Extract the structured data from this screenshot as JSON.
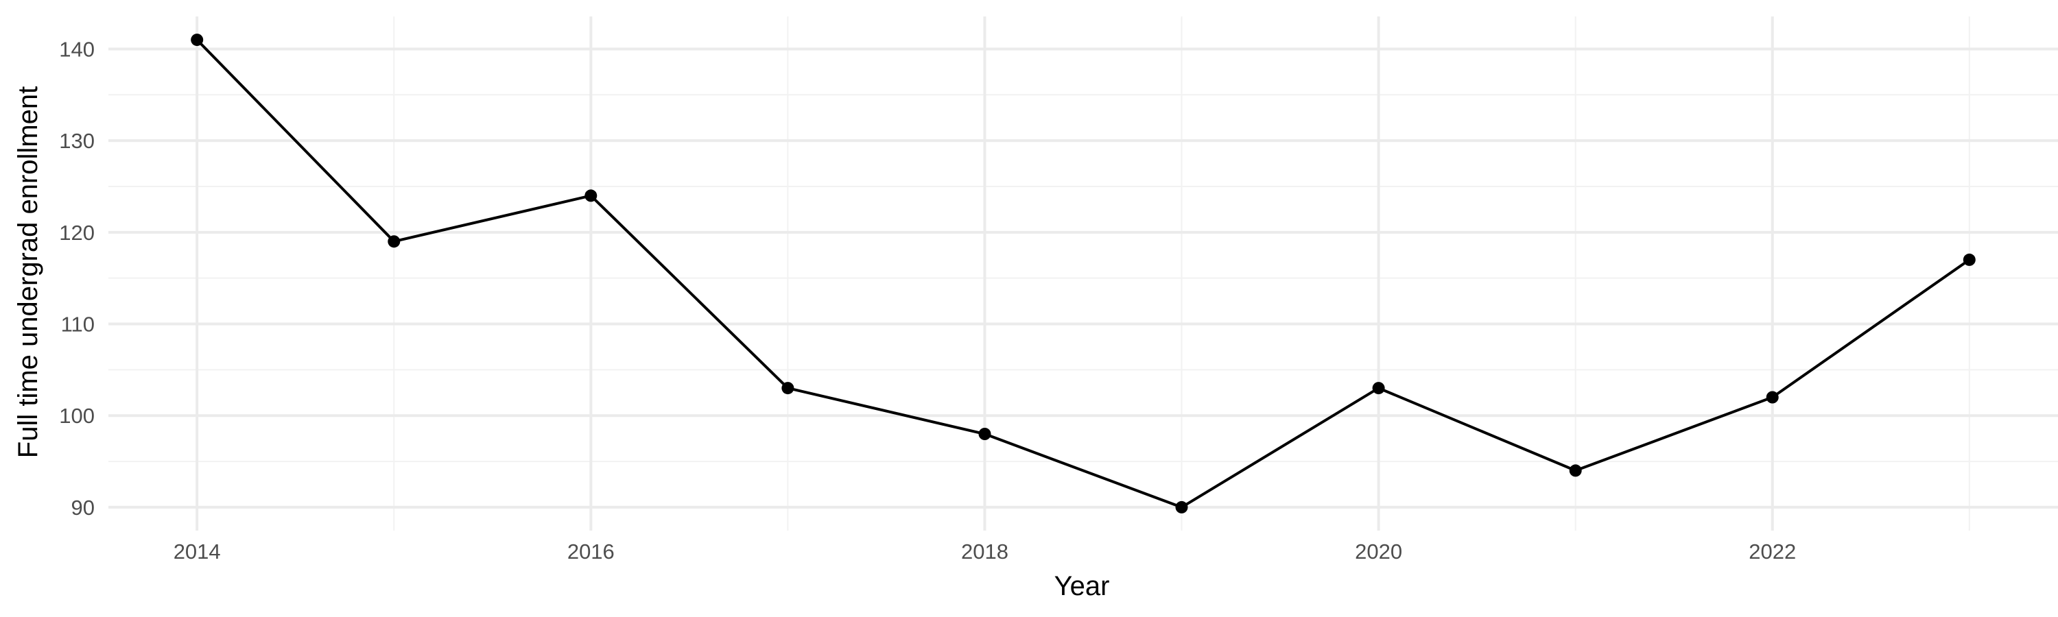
{
  "chart_data": {
    "type": "line",
    "title": "",
    "xlabel": "Year",
    "ylabel": "Full time undergrad enrollment",
    "x": [
      2014,
      2015,
      2016,
      2017,
      2018,
      2019,
      2020,
      2021,
      2022,
      2023
    ],
    "series": [
      {
        "name": "",
        "values": [
          141,
          119,
          124,
          103,
          98,
          90,
          103,
          94,
          102,
          117
        ],
        "color": "#000000"
      }
    ],
    "xlim": [
      2013.55,
      2023.45
    ],
    "ylim": [
      87.45,
      143.55
    ],
    "x_ticks": [
      2014,
      2016,
      2018,
      2020,
      2022
    ],
    "x_tick_labels": [
      "2014",
      "2016",
      "2018",
      "2020",
      "2022"
    ],
    "x_minor_ticks": [
      2015,
      2017,
      2019,
      2021,
      2023
    ],
    "y_ticks": [
      90,
      100,
      110,
      120,
      130,
      140
    ],
    "y_tick_labels": [
      "90",
      "100",
      "110",
      "120",
      "130",
      "140"
    ],
    "y_minor_ticks": [
      95,
      105,
      115,
      125,
      135
    ],
    "grid": true,
    "legend": "none",
    "background_color": "#ffffff",
    "grid_color": "#ebebeb"
  }
}
